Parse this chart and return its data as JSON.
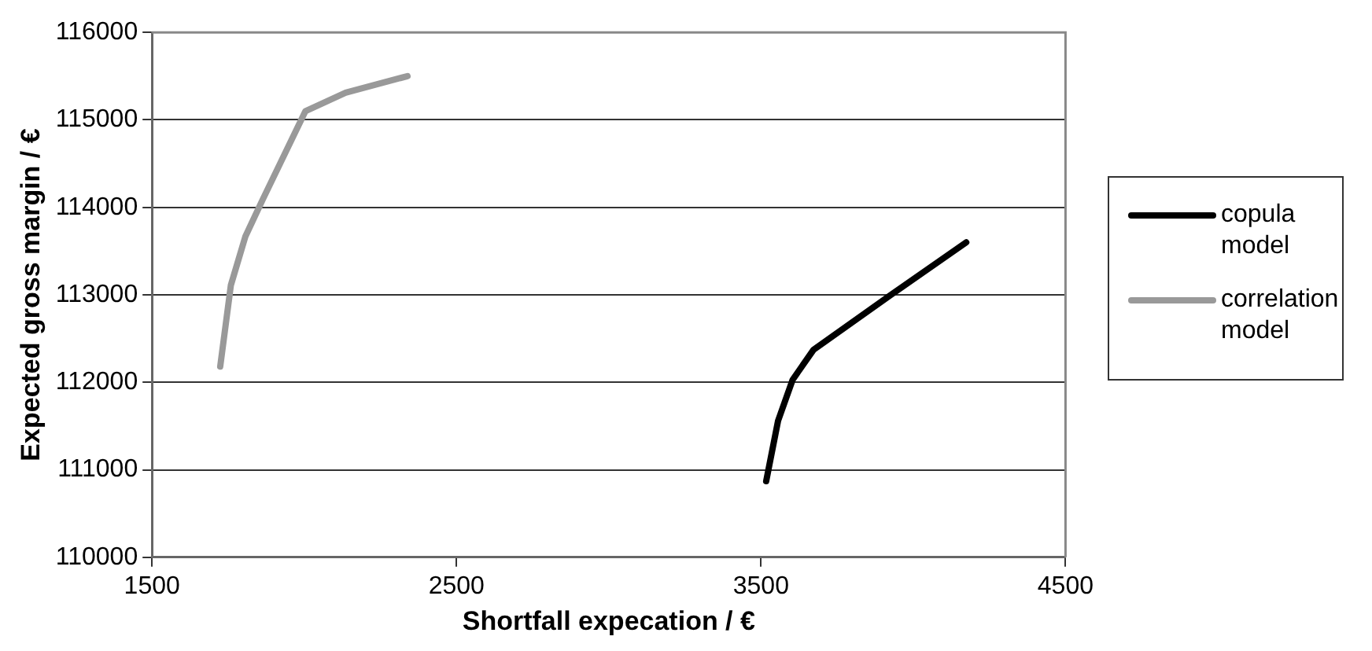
{
  "chart_data": {
    "type": "line",
    "xlabel": "Shortfall expecation / €",
    "ylabel": "Expected gross margin / €",
    "series": [
      {
        "name": "copula model",
        "color": "#000000",
        "x": [
          3517,
          3556,
          3604,
          3672,
          3923,
          4174
        ],
        "values": [
          110870,
          111560,
          112030,
          112370,
          112990,
          113600
        ]
      },
      {
        "name": "correlation model",
        "color": "#999999",
        "x": [
          1724,
          1759,
          1807,
          1865,
          2004,
          2136,
          2339
        ],
        "values": [
          112180,
          113110,
          113670,
          114100,
          115100,
          115310,
          115500
        ]
      }
    ],
    "xlim": [
      1500,
      4500
    ],
    "xticks": [
      1500,
      2500,
      3500,
      4500
    ],
    "ylim": [
      110000,
      116000
    ],
    "yticks": [
      110000,
      111000,
      112000,
      113000,
      114000,
      115000,
      116000
    ],
    "grid": "y",
    "legend": "right",
    "marker": "none",
    "line_style": "solid"
  }
}
